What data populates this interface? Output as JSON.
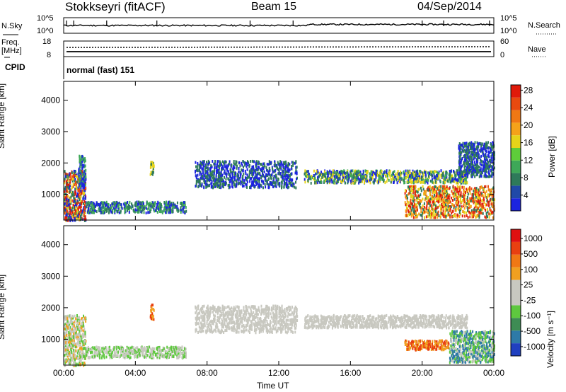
{
  "header": {
    "station": "Stokkseyri (fitACF)",
    "beam": "Beam 15",
    "date": "04/Sep/2014"
  },
  "noise_panel": {
    "left_label": "N.Sky",
    "left_top_tick": "10^5",
    "left_bottom_tick": "10^0",
    "right_top_tick": "10^5",
    "right_bottom_tick": "10^0",
    "right_label": "N.Search"
  },
  "freq_panel": {
    "left_label_top": "Freq.",
    "left_label_bottom": "[MHz]",
    "left_top_tick": "18",
    "left_bottom_tick": "8",
    "right_top_tick": "60",
    "right_bottom_tick": "0",
    "right_label": "Nave"
  },
  "cpid": {
    "label": "CPID",
    "value": "normal (fast) 151"
  },
  "axes": {
    "ylabel": "Slant Range [km]",
    "xlabel": "Time UT",
    "x_ticks": [
      "00:00",
      "04:00",
      "08:00",
      "12:00",
      "16:00",
      "20:00",
      "00:00"
    ],
    "y_ticks": [
      "1000",
      "2000",
      "3000",
      "4000"
    ]
  },
  "colorbars": {
    "power": {
      "label": "Power [dB]",
      "ticks": [
        "4",
        "8",
        "12",
        "16",
        "20",
        "24",
        "28"
      ],
      "colors": [
        "#1c24e0",
        "#2049a8",
        "#2e7a5a",
        "#3ea858",
        "#5ecc3a",
        "#e6d41a",
        "#f5a21a",
        "#f07814",
        "#e84a10",
        "#e01a0a"
      ]
    },
    "velocity": {
      "label": "Velocity [m s⁻¹]",
      "ticks": [
        "1000",
        "500",
        "100",
        "25",
        "-25",
        "-100",
        "-500",
        "-1000"
      ],
      "colors": [
        "#2040c0",
        "#2e7aa8",
        "#3e8c54",
        "#5ec83e",
        "#c8c8c0",
        "#c8c8c0",
        "#f0a020",
        "#f07814",
        "#e84010",
        "#e01010"
      ]
    }
  },
  "chart_data": [
    {
      "type": "heatmap",
      "title": "Power",
      "xlabel": "Time UT",
      "ylabel": "Slant Range [km]",
      "xlim": [
        0,
        24
      ],
      "ylim": [
        180,
        4600
      ],
      "x_unit": "hours UT",
      "regions": [
        {
          "t0": 0.0,
          "t1": 1.2,
          "r0": 200,
          "r1": 1800,
          "level": "mixed",
          "values_db": [
            4,
            8,
            16,
            24,
            28
          ]
        },
        {
          "t0": 0.8,
          "t1": 1.2,
          "r0": 1300,
          "r1": 2300,
          "level": "low-mid",
          "values_db": [
            4,
            12
          ]
        },
        {
          "t0": 1.2,
          "t1": 6.8,
          "r0": 450,
          "r1": 800,
          "level": "low",
          "values_db": [
            4,
            8,
            12
          ]
        },
        {
          "t0": 4.8,
          "t1": 5.0,
          "r0": 1650,
          "r1": 2150,
          "level": "mid",
          "values_db": [
            8,
            16
          ]
        },
        {
          "t0": 7.3,
          "t1": 13.0,
          "r0": 1250,
          "r1": 2100,
          "level": "low",
          "values_db": [
            4,
            8
          ]
        },
        {
          "t0": 13.4,
          "t1": 22.5,
          "r0": 1400,
          "r1": 1800,
          "level": "low-mid",
          "values_db": [
            4,
            8,
            12,
            16
          ]
        },
        {
          "t0": 22.0,
          "t1": 24.0,
          "r0": 1600,
          "r1": 2700,
          "level": "low",
          "values_db": [
            4,
            8
          ]
        },
        {
          "t0": 19.0,
          "t1": 24.0,
          "r0": 300,
          "r1": 1300,
          "level": "high",
          "values_db": [
            8,
            16,
            20,
            24,
            28
          ]
        }
      ]
    },
    {
      "type": "heatmap",
      "title": "Velocity",
      "xlabel": "Time UT",
      "ylabel": "Slant Range [km]",
      "xlim": [
        0,
        24
      ],
      "ylim": [
        180,
        4600
      ],
      "x_unit": "hours UT",
      "regions": [
        {
          "t0": 0.0,
          "t1": 1.2,
          "r0": 200,
          "r1": 1800,
          "values_ms": [
            100,
            25,
            -25,
            -100
          ]
        },
        {
          "t0": 1.2,
          "t1": 6.8,
          "r0": 450,
          "r1": 800,
          "values_ms": [
            25,
            100
          ]
        },
        {
          "t0": 4.8,
          "t1": 5.0,
          "r0": 1650,
          "r1": 2150,
          "values_ms": [
            -100,
            -500
          ]
        },
        {
          "t0": 7.3,
          "t1": 13.0,
          "r0": 1250,
          "r1": 2100,
          "values_ms": [
            25
          ]
        },
        {
          "t0": 13.4,
          "t1": 22.5,
          "r0": 1400,
          "r1": 1800,
          "values_ms": [
            25,
            -25
          ]
        },
        {
          "t0": 19.0,
          "t1": 21.5,
          "r0": 700,
          "r1": 1000,
          "values_ms": [
            -100,
            -500
          ]
        },
        {
          "t0": 21.5,
          "t1": 24.0,
          "r0": 300,
          "r1": 1300,
          "values_ms": [
            500,
            100,
            25
          ]
        }
      ]
    }
  ]
}
